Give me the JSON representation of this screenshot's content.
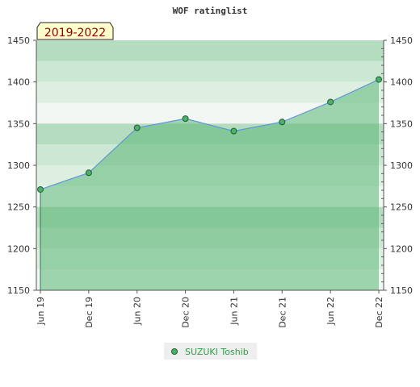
{
  "chart_data": {
    "type": "area",
    "title": "WOF ratinglist",
    "period_badge": "2019-2022",
    "x": [
      "Jun 19",
      "Dec 19",
      "Jun 20",
      "Dec 20",
      "Jun 21",
      "Dec 21",
      "Jun 22",
      "Dec 22"
    ],
    "series": [
      {
        "name": "SUZUKI Toshib",
        "values": [
          1271,
          1291,
          1345,
          1356,
          1341,
          1352,
          1376,
          1403
        ]
      }
    ],
    "ylim": [
      1150,
      1450
    ],
    "yticks": [
      1150,
      1200,
      1250,
      1300,
      1350,
      1400,
      1450
    ],
    "y_axes": "left and right",
    "legend_position": "bottom-center",
    "colors": {
      "line": "#5b9bd5",
      "area_fill": "#66bb7f",
      "marker_fill": "#4caf6a",
      "marker_stroke": "#1e5f32",
      "legend_text": "#2e9e4a",
      "badge_fill": "#ffffcc",
      "badge_text": "#8b0000",
      "band_colors": [
        "#f1f8f3",
        "#dcefe1",
        "#cce7d3",
        "#b4dcbf"
      ]
    }
  }
}
